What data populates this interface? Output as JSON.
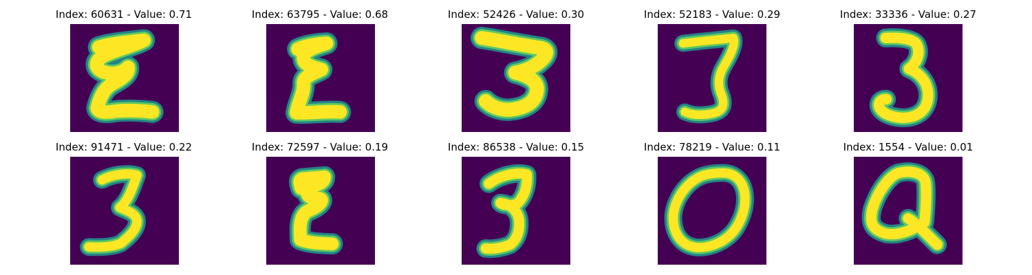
{
  "figure": {
    "background": "#440154",
    "glyph_colors": [
      "#fde725",
      "#5ec962",
      "#21918c"
    ],
    "panels": [
      {
        "index": "60631",
        "value": "0.71",
        "title": "Index: 60631 - Value: 0.71",
        "glyph": "E"
      },
      {
        "index": "63795",
        "value": "0.68",
        "title": "Index: 63795 - Value: 0.68",
        "glyph": "E"
      },
      {
        "index": "52426",
        "value": "0.30",
        "title": "Index: 52426 - Value: 0.30",
        "glyph": "3"
      },
      {
        "index": "52183",
        "value": "0.29",
        "title": "Index: 52183 - Value: 0.29",
        "glyph": "3"
      },
      {
        "index": "33336",
        "value": "0.27",
        "title": "Index: 33336 - Value: 0.27",
        "glyph": "3"
      },
      {
        "index": "91471",
        "value": "0.22",
        "title": "Index: 91471 - Value: 0.22",
        "glyph": "3"
      },
      {
        "index": "72597",
        "value": "0.19",
        "title": "Index: 72597 - Value: 0.19",
        "glyph": "E"
      },
      {
        "index": "86538",
        "value": "0.15",
        "title": "Index: 86538 - Value: 0.15",
        "glyph": "3"
      },
      {
        "index": "78219",
        "value": "0.11",
        "title": "Index: 78219 - Value: 0.11",
        "glyph": "O"
      },
      {
        "index": "1554",
        "value": "0.01",
        "title": "Index: 1554 - Value: 0.01",
        "glyph": "Q"
      }
    ]
  }
}
